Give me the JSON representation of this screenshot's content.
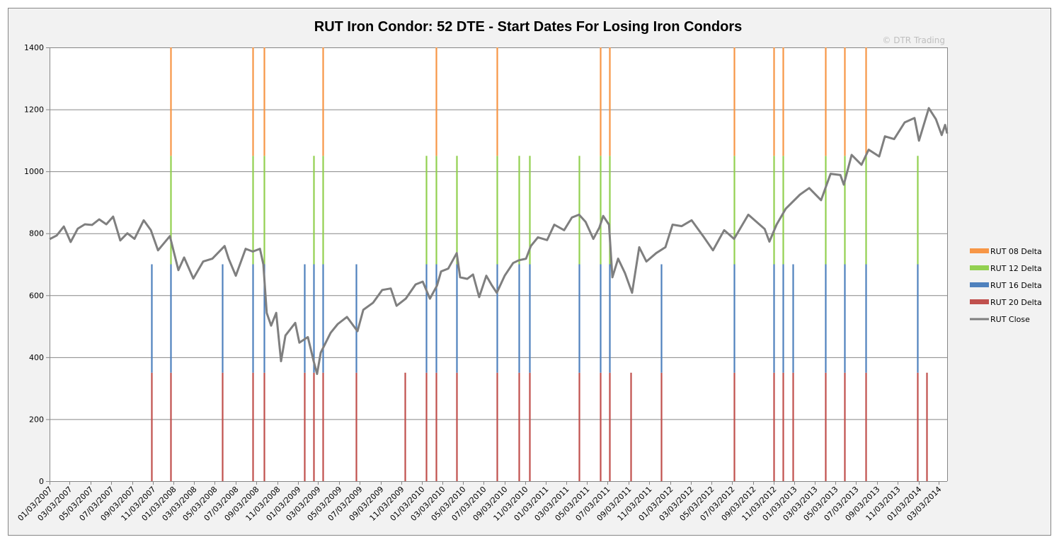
{
  "chart_data": {
    "type": "bar",
    "title": "RUT Iron Condor: 52 DTE - Start Dates For Losing Iron Condors",
    "watermark": "© DTR Trading",
    "xlabel": "",
    "ylabel": "",
    "ylim": [
      0,
      1400
    ],
    "yticks": [
      0,
      200,
      400,
      600,
      800,
      1000,
      1200,
      1400
    ],
    "xlim": [
      "2007-01-03",
      "2014-03-28"
    ],
    "grid": true,
    "legend_position": "right",
    "stacked": true,
    "xtick_labels": [
      "01/03/2007",
      "03/03/2007",
      "05/03/2007",
      "07/03/2007",
      "09/03/2007",
      "11/03/2007",
      "01/03/2008",
      "03/03/2008",
      "05/03/2008",
      "07/03/2008",
      "09/03/2008",
      "11/03/2008",
      "01/03/2009",
      "03/03/2009",
      "05/03/2009",
      "07/03/2009",
      "09/03/2009",
      "11/03/2009",
      "01/03/2010",
      "03/03/2010",
      "05/03/2010",
      "07/03/2010",
      "09/03/2010",
      "11/03/2010",
      "01/03/2011",
      "03/03/2011",
      "05/03/2011",
      "07/03/2011",
      "09/03/2011",
      "11/03/2011",
      "01/03/2012",
      "03/03/2012",
      "05/03/2012",
      "07/03/2012",
      "09/03/2012",
      "11/03/2012",
      "01/03/2013",
      "03/03/2013",
      "05/03/2013",
      "07/03/2013",
      "09/03/2013",
      "11/03/2013",
      "01/03/2014",
      "03/03/2014"
    ],
    "series": [
      {
        "name": "RUT 20 Delta",
        "color": "#c0504d",
        "value": 350,
        "dates": [
          "2007-10-30",
          "2007-12-25",
          "2008-05-25",
          "2008-08-23",
          "2008-09-25",
          "2009-01-22",
          "2009-02-18",
          "2009-03-17",
          "2009-06-23",
          "2009-11-14",
          "2010-01-15",
          "2010-02-13",
          "2010-04-15",
          "2010-08-11",
          "2010-10-15",
          "2010-11-15",
          "2011-04-10",
          "2011-06-12",
          "2011-07-09",
          "2011-09-09",
          "2011-12-08",
          "2012-07-09",
          "2012-11-03",
          "2012-11-30",
          "2012-12-29",
          "2013-04-04",
          "2013-05-30",
          "2013-08-01",
          "2013-12-31",
          "2014-01-27"
        ]
      },
      {
        "name": "RUT 16 Delta",
        "color": "#4f81bd",
        "value": 350,
        "dates": [
          "2007-10-30",
          "2007-12-25",
          "2008-05-25",
          "2008-08-23",
          "2008-09-25",
          "2009-01-22",
          "2009-02-18",
          "2009-03-17",
          "2009-06-23",
          "2010-01-15",
          "2010-02-13",
          "2010-04-15",
          "2010-08-11",
          "2010-10-15",
          "2010-11-15",
          "2011-04-10",
          "2011-06-12",
          "2011-07-09",
          "2011-12-08",
          "2012-07-09",
          "2012-11-03",
          "2012-11-30",
          "2012-12-29",
          "2013-04-04",
          "2013-05-30",
          "2013-08-01",
          "2013-12-31"
        ]
      },
      {
        "name": "RUT 12 Delta",
        "color": "#92d050",
        "value": 350,
        "dates": [
          "2007-12-25",
          "2008-08-23",
          "2008-09-25",
          "2009-02-18",
          "2009-03-17",
          "2010-01-15",
          "2010-02-13",
          "2010-04-15",
          "2010-08-11",
          "2010-10-15",
          "2010-11-15",
          "2011-04-10",
          "2011-06-12",
          "2011-07-09",
          "2012-07-09",
          "2012-11-03",
          "2012-11-30",
          "2013-04-04",
          "2013-05-30",
          "2013-08-01",
          "2013-12-31"
        ]
      },
      {
        "name": "RUT 08 Delta",
        "color": "#f79646",
        "value": 350,
        "dates": [
          "2007-12-25",
          "2008-08-23",
          "2008-09-25",
          "2009-03-17",
          "2010-02-13",
          "2010-08-11",
          "2011-06-12",
          "2011-07-09",
          "2012-07-09",
          "2012-11-03",
          "2012-11-30",
          "2013-04-04",
          "2013-05-30",
          "2013-08-01"
        ]
      }
    ],
    "line_series": {
      "name": "RUT Close",
      "color": "#7f7f7f",
      "points": [
        [
          "2007-01-03",
          781
        ],
        [
          "2007-01-24",
          793
        ],
        [
          "2007-02-14",
          822
        ],
        [
          "2007-03-06",
          772
        ],
        [
          "2007-03-27",
          815
        ],
        [
          "2007-04-17",
          829
        ],
        [
          "2007-05-08",
          827
        ],
        [
          "2007-05-29",
          845
        ],
        [
          "2007-06-19",
          829
        ],
        [
          "2007-07-09",
          854
        ],
        [
          "2007-07-30",
          777
        ],
        [
          "2007-08-20",
          800
        ],
        [
          "2007-09-10",
          782
        ],
        [
          "2007-10-07",
          842
        ],
        [
          "2007-10-28",
          810
        ],
        [
          "2007-11-18",
          745
        ],
        [
          "2007-12-23",
          791
        ],
        [
          "2008-01-17",
          681
        ],
        [
          "2008-02-03",
          722
        ],
        [
          "2008-03-01",
          654
        ],
        [
          "2008-03-30",
          709
        ],
        [
          "2008-04-26",
          718
        ],
        [
          "2008-06-01",
          759
        ],
        [
          "2008-06-13",
          718
        ],
        [
          "2008-07-04",
          663
        ],
        [
          "2008-08-02",
          750
        ],
        [
          "2008-08-23",
          741
        ],
        [
          "2008-09-13",
          750
        ],
        [
          "2008-09-23",
          700
        ],
        [
          "2008-10-03",
          543
        ],
        [
          "2008-10-16",
          502
        ],
        [
          "2008-10-31",
          543
        ],
        [
          "2008-11-14",
          387
        ],
        [
          "2008-11-27",
          470
        ],
        [
          "2008-12-26",
          511
        ],
        [
          "2009-01-07",
          447
        ],
        [
          "2009-02-01",
          465
        ],
        [
          "2009-02-18",
          387
        ],
        [
          "2009-02-28",
          346
        ],
        [
          "2009-03-11",
          415
        ],
        [
          "2009-04-09",
          479
        ],
        [
          "2009-04-30",
          507
        ],
        [
          "2009-05-27",
          530
        ],
        [
          "2009-06-27",
          484
        ],
        [
          "2009-07-14",
          553
        ],
        [
          "2009-08-12",
          576
        ],
        [
          "2009-09-08",
          617
        ],
        [
          "2009-10-03",
          622
        ],
        [
          "2009-10-20",
          566
        ],
        [
          "2009-11-16",
          589
        ],
        [
          "2009-12-15",
          635
        ],
        [
          "2010-01-05",
          644
        ],
        [
          "2010-01-26",
          589
        ],
        [
          "2010-02-16",
          631
        ],
        [
          "2010-02-28",
          677
        ],
        [
          "2010-03-21",
          686
        ],
        [
          "2010-04-15",
          736
        ],
        [
          "2010-04-25",
          658
        ],
        [
          "2010-05-16",
          653
        ],
        [
          "2010-06-02",
          667
        ],
        [
          "2010-06-20",
          594
        ],
        [
          "2010-07-11",
          663
        ],
        [
          "2010-07-28",
          631
        ],
        [
          "2010-08-11",
          608
        ],
        [
          "2010-09-03",
          663
        ],
        [
          "2010-09-28",
          704
        ],
        [
          "2010-10-15",
          713
        ],
        [
          "2010-11-05",
          718
        ],
        [
          "2010-11-19",
          759
        ],
        [
          "2010-12-10",
          787
        ],
        [
          "2011-01-06",
          778
        ],
        [
          "2011-01-27",
          828
        ],
        [
          "2011-02-25",
          810
        ],
        [
          "2011-03-20",
          851
        ],
        [
          "2011-04-10",
          860
        ],
        [
          "2011-04-29",
          837
        ],
        [
          "2011-05-22",
          782
        ],
        [
          "2011-06-09",
          819
        ],
        [
          "2011-06-20",
          856
        ],
        [
          "2011-07-07",
          828
        ],
        [
          "2011-07-17",
          658
        ],
        [
          "2011-08-03",
          718
        ],
        [
          "2011-08-23",
          672
        ],
        [
          "2011-09-13",
          608
        ],
        [
          "2011-10-04",
          755
        ],
        [
          "2011-10-25",
          709
        ],
        [
          "2011-11-23",
          736
        ],
        [
          "2011-12-20",
          755
        ],
        [
          "2012-01-10",
          828
        ],
        [
          "2012-02-06",
          823
        ],
        [
          "2012-03-06",
          842
        ],
        [
          "2012-04-09",
          791
        ],
        [
          "2012-05-08",
          745
        ],
        [
          "2012-06-10",
          810
        ],
        [
          "2012-07-09",
          782
        ],
        [
          "2012-08-20",
          860
        ],
        [
          "2012-10-07",
          814
        ],
        [
          "2012-10-21",
          773
        ],
        [
          "2012-11-11",
          828
        ],
        [
          "2012-12-08",
          879
        ],
        [
          "2013-01-19",
          925
        ],
        [
          "2013-02-15",
          946
        ],
        [
          "2013-03-22",
          907
        ],
        [
          "2013-04-19",
          992
        ],
        [
          "2013-05-18",
          988
        ],
        [
          "2013-05-28",
          957
        ],
        [
          "2013-06-20",
          1053
        ],
        [
          "2013-07-19",
          1021
        ],
        [
          "2013-08-09",
          1070
        ],
        [
          "2013-09-09",
          1048
        ],
        [
          "2013-09-26",
          1113
        ],
        [
          "2013-10-23",
          1104
        ],
        [
          "2013-11-23",
          1158
        ],
        [
          "2013-12-22",
          1172
        ],
        [
          "2014-01-04",
          1099
        ],
        [
          "2014-02-02",
          1204
        ],
        [
          "2014-02-23",
          1168
        ],
        [
          "2014-03-12",
          1117
        ],
        [
          "2014-03-22",
          1150
        ],
        [
          "2014-03-28",
          1122
        ]
      ]
    },
    "legend": [
      "RUT 08 Delta",
      "RUT 12 Delta",
      "RUT 16 Delta",
      "RUT 20 Delta",
      "RUT Close"
    ],
    "legend_colors": [
      "#f79646",
      "#92d050",
      "#4f81bd",
      "#c0504d",
      "#7f7f7f"
    ]
  }
}
